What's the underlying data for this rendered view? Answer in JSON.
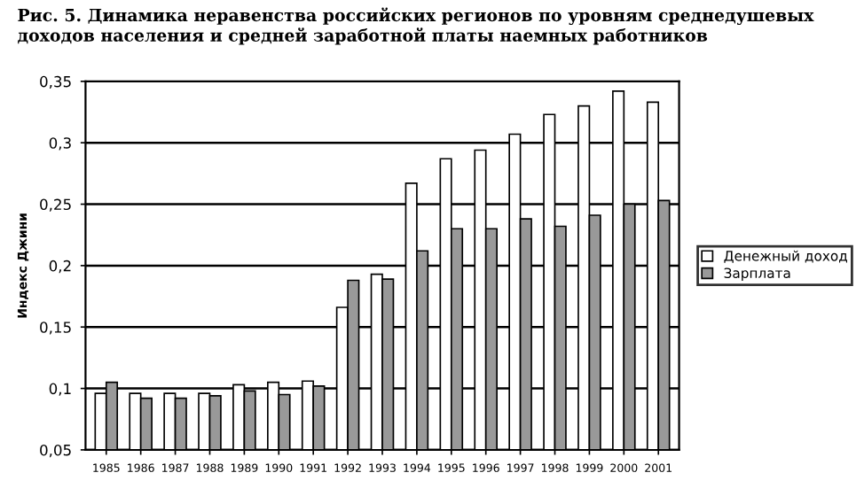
{
  "chart_data": {
    "type": "bar",
    "title": "Рис. 5. Динамика неравенства российских регионов по уровням среднедушевых доходов населения и средней заработной платы наемных работников",
    "ylabel": "Индекс Джини",
    "categories": [
      "1985",
      "1986",
      "1987",
      "1988",
      "1989",
      "1990",
      "1991",
      "1992",
      "1993",
      "1994",
      "1995",
      "1996",
      "1997",
      "1998",
      "1999",
      "2000",
      "2001"
    ],
    "series": [
      {
        "name": "Денежный доход",
        "color": "#ffffff",
        "values": [
          0.096,
          0.096,
          0.096,
          0.096,
          0.103,
          0.105,
          0.106,
          0.166,
          0.193,
          0.267,
          0.287,
          0.294,
          0.307,
          0.323,
          0.33,
          0.342,
          0.333
        ]
      },
      {
        "name": "Зарплата",
        "color": "#999999",
        "values": [
          0.105,
          0.092,
          0.092,
          0.094,
          0.098,
          0.095,
          0.102,
          0.188,
          0.189,
          0.212,
          0.23,
          0.23,
          0.238,
          0.232,
          0.241,
          0.25,
          0.253
        ]
      }
    ],
    "ylim": [
      0.05,
      0.35
    ],
    "yticks": [
      {
        "value": 0.05,
        "label": "0,05"
      },
      {
        "value": 0.1,
        "label": "0,1"
      },
      {
        "value": 0.15,
        "label": "0,15"
      },
      {
        "value": 0.2,
        "label": "0,2"
      },
      {
        "value": 0.25,
        "label": "0,25"
      },
      {
        "value": 0.3,
        "label": "0,3"
      },
      {
        "value": 0.35,
        "label": "0,35"
      }
    ],
    "grid": "y",
    "legend": "right"
  }
}
